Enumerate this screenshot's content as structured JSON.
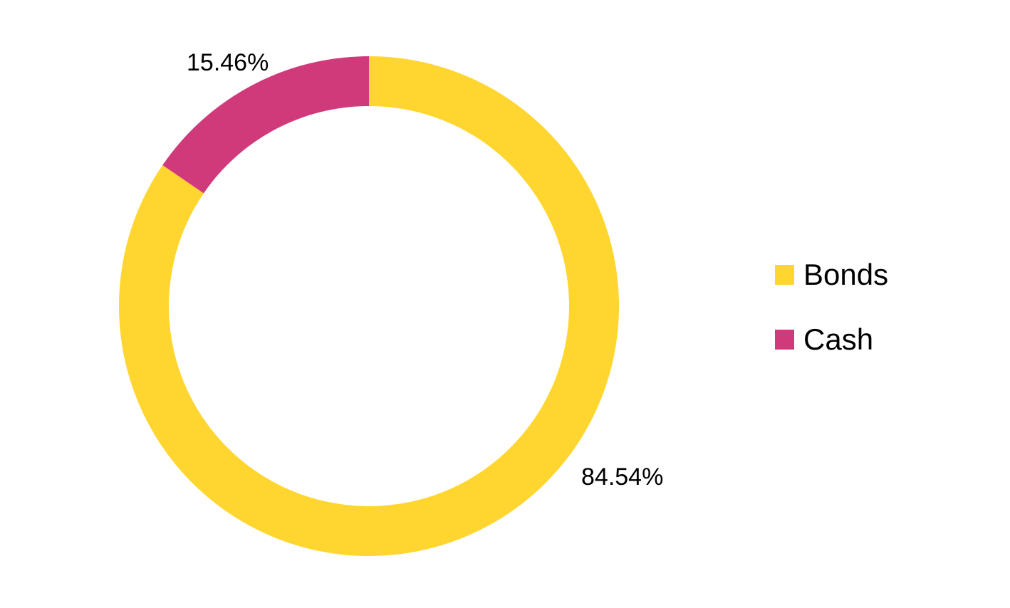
{
  "chart_data": {
    "type": "pie",
    "variant": "donut",
    "categories": [
      "Bonds",
      "Cash"
    ],
    "values": [
      84.54,
      15.46
    ],
    "unit": "%",
    "data_labels": [
      "84.54%",
      "15.46%"
    ],
    "colors": [
      "#FFD630",
      "#D13A7A"
    ],
    "legend": {
      "placement": "right",
      "entries": [
        {
          "name": "Bonds",
          "color": "#FFD630"
        },
        {
          "name": "Cash",
          "color": "#D13A7A"
        }
      ]
    }
  }
}
